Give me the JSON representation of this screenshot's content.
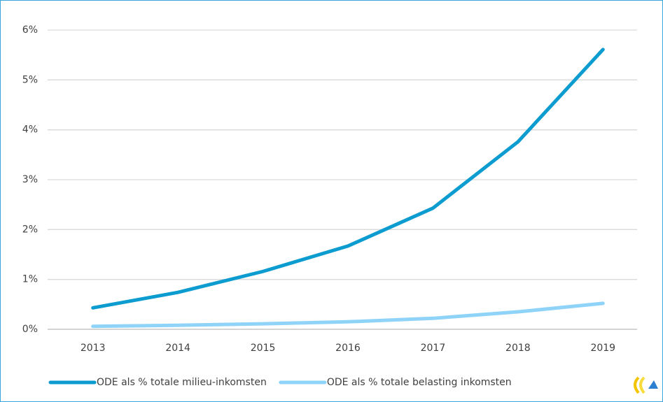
{
  "chart_data": {
    "type": "line",
    "categories": [
      "2013",
      "2014",
      "2015",
      "2016",
      "2017",
      "2018",
      "2019"
    ],
    "series": [
      {
        "name": "ODE als % totale milieu-inkomsten",
        "color": "#0d9ccf",
        "values": [
          0.43,
          0.74,
          1.16,
          1.67,
          2.43,
          3.76,
          5.61
        ]
      },
      {
        "name": "ODE als % totale belasting inkomsten",
        "color": "#8fd4f8",
        "values": [
          0.06,
          0.08,
          0.11,
          0.15,
          0.22,
          0.35,
          0.52
        ]
      }
    ],
    "ylim": [
      0,
      6
    ],
    "yticks": [
      {
        "value": 0,
        "label": "0%"
      },
      {
        "value": 1,
        "label": "1%"
      },
      {
        "value": 2,
        "label": "2%"
      },
      {
        "value": 3,
        "label": "3%"
      },
      {
        "value": 4,
        "label": "4%"
      },
      {
        "value": 5,
        "label": "5%"
      },
      {
        "value": 6,
        "label": "6%"
      }
    ],
    "grid": true,
    "legend": "bottom"
  }
}
